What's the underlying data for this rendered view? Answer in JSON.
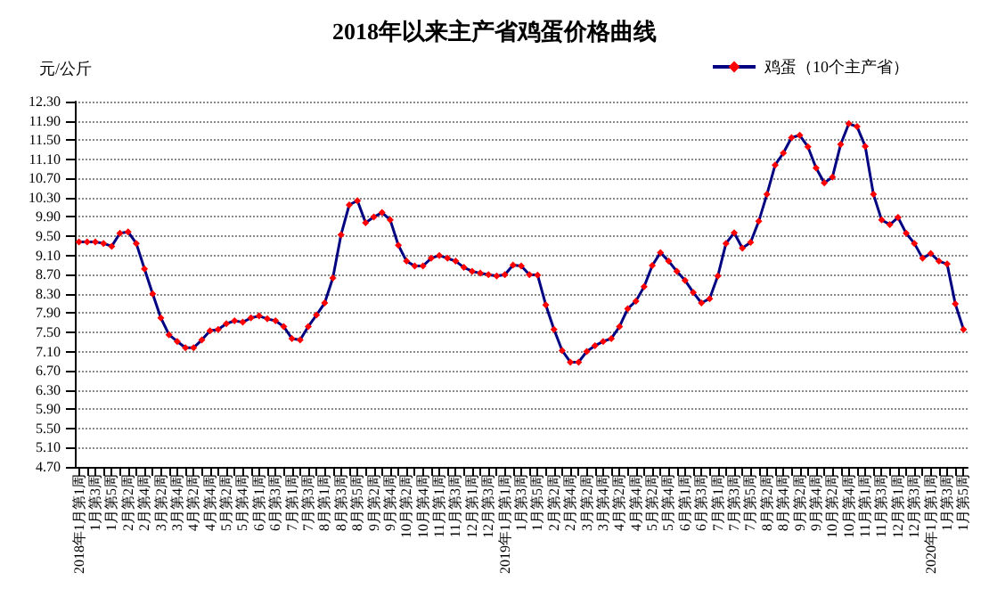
{
  "chart_data": {
    "type": "line",
    "title": "2018年以来主产省鸡蛋价格曲线",
    "ylabel": "元/公斤",
    "categories": [
      "2018年1月第1周",
      null,
      "1月第3周",
      null,
      "1月第5周",
      null,
      "2月第2周",
      null,
      "2月第4周",
      null,
      "3月第2周",
      null,
      "3月第4周",
      null,
      "4月第2周",
      null,
      "4月第4周",
      null,
      "5月第2周",
      null,
      "5月第4周",
      null,
      "6月第1周",
      null,
      "6月第3周",
      null,
      "7月第1周",
      null,
      "7月第3周",
      null,
      "8月第1周",
      null,
      "8月第3周",
      null,
      "8月第5周",
      null,
      "9月第2周",
      null,
      "9月第4周",
      null,
      "10月第2周",
      null,
      "10月第4周",
      null,
      "11月第1周",
      null,
      "11月第3周",
      null,
      "12月第1周",
      null,
      "12月第3周",
      null,
      "2019年1月第1周",
      null,
      "1月第3周",
      null,
      "1月第5周",
      null,
      "2月第2周",
      null,
      "2月第4周",
      null,
      "3月第2周",
      null,
      "3月第4周",
      null,
      "4月第2周",
      null,
      "4月第4周",
      null,
      "5月第2周",
      null,
      "5月第4周",
      null,
      "6月第1周",
      null,
      "6月第3周",
      null,
      "7月第1周",
      null,
      "7月第3周",
      null,
      "7月第5周",
      null,
      "8月第2周",
      null,
      "8月第4周",
      null,
      "9月第2周",
      null,
      "9月第4周",
      null,
      "10月第2周",
      null,
      "10月第4周",
      null,
      "11月第1周",
      null,
      "11月第3周",
      null,
      "12月第1周",
      null,
      "12月第3周",
      null,
      "2020年1月第1周",
      null,
      "1月第3周",
      null,
      "1月第5周"
    ],
    "series": [
      {
        "name": "鸡蛋（10个主产省）",
        "color": "#ff0000",
        "values": [
          9.38,
          9.38,
          9.38,
          9.35,
          9.29,
          9.56,
          9.59,
          9.35,
          8.82,
          8.3,
          7.8,
          7.45,
          7.31,
          7.18,
          7.18,
          7.34,
          7.53,
          7.56,
          7.68,
          7.74,
          7.71,
          7.8,
          7.84,
          7.78,
          7.74,
          7.62,
          7.37,
          7.34,
          7.62,
          7.86,
          8.11,
          8.63,
          9.53,
          10.15,
          10.24,
          9.78,
          9.9,
          9.99,
          9.84,
          9.31,
          8.98,
          8.88,
          8.88,
          9.04,
          9.1,
          9.04,
          8.98,
          8.85,
          8.77,
          8.73,
          8.7,
          8.67,
          8.7,
          8.9,
          8.88,
          8.7,
          8.69,
          8.07,
          7.56,
          7.12,
          6.88,
          6.88,
          7.1,
          7.22,
          7.31,
          7.37,
          7.62,
          7.99,
          8.15,
          8.45,
          8.89,
          9.16,
          8.98,
          8.77,
          8.58,
          8.33,
          8.11,
          8.2,
          8.67,
          9.35,
          9.57,
          9.25,
          9.37,
          9.81,
          10.37,
          10.98,
          11.23,
          11.55,
          11.6,
          11.36,
          10.92,
          10.61,
          10.73,
          11.41,
          11.84,
          11.78,
          11.37,
          10.37,
          9.84,
          9.74,
          9.89,
          9.56,
          9.35,
          9.04,
          9.14,
          8.98,
          8.92,
          8.09,
          7.56
        ]
      }
    ],
    "ylim": [
      4.7,
      12.3
    ],
    "yticks": [
      {
        "value": 4.7,
        "label": "4.70"
      },
      {
        "value": 5.1,
        "label": "5.10"
      },
      {
        "value": 5.5,
        "label": "5.50"
      },
      {
        "value": 5.9,
        "label": "5.90"
      },
      {
        "value": 6.3,
        "label": "6.30"
      },
      {
        "value": 6.7,
        "label": "6.70"
      },
      {
        "value": 7.1,
        "label": "7.10"
      },
      {
        "value": 7.5,
        "label": "7.50"
      },
      {
        "value": 7.9,
        "label": "7.90"
      },
      {
        "value": 8.3,
        "label": "8.30"
      },
      {
        "value": 8.7,
        "label": "8.70"
      },
      {
        "value": 9.1,
        "label": "9.10"
      },
      {
        "value": 9.5,
        "label": "9.50"
      },
      {
        "value": 9.9,
        "label": "9.90"
      },
      {
        "value": 10.3,
        "label": "10.30"
      },
      {
        "value": 10.7,
        "label": "10.70"
      },
      {
        "value": 11.1,
        "label": "11.10"
      },
      {
        "value": 11.5,
        "label": "11.50"
      },
      {
        "value": 11.9,
        "label": "11.90"
      },
      {
        "value": 12.3,
        "label": "12.30"
      }
    ],
    "grid": "y",
    "legend": "top right",
    "marker": "diamond",
    "line_style": "solid"
  }
}
